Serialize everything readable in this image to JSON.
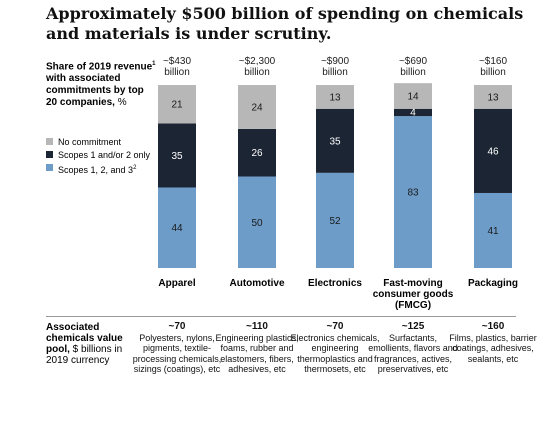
{
  "title": "Approximately $500 billion of spending on chemicals and materials is under scrutiny.",
  "left_label": {
    "main": "Share of 2019 revenue",
    "sup": "1",
    "rest": " with associated commitments by top 20 companies,",
    "unit": " %"
  },
  "legend": [
    {
      "label": "No commitment",
      "color": "#b7b7b7"
    },
    {
      "label": "Scopes 1 and/or 2 only",
      "color": "#1c2533"
    },
    {
      "label": "Scopes 1, 2, and 3",
      "sup": "2",
      "color": "#6d9cc9"
    }
  ],
  "columns": [
    {
      "revenue": "~$430",
      "unit": "billion",
      "category": "Apparel",
      "pool": "~70",
      "pool_desc": "Polyesters, nylons, pigments, textile-processing chemicals, sizings (coatings), etc"
    },
    {
      "revenue": "~$2,300",
      "unit": "billion",
      "category": "Automotive",
      "pool": "~110",
      "pool_desc": "Engineering plastics, foams, rubber and elastomers, fibers, adhesives, etc"
    },
    {
      "revenue": "~$900",
      "unit": "billion",
      "category": "Electronics",
      "pool": "~70",
      "pool_desc": "Electronics chemicals, engineering thermoplastics and thermosets, etc"
    },
    {
      "revenue": "~$690",
      "unit": "billion",
      "category": "Fast-moving consumer goods (FMCG)",
      "pool": "~125",
      "pool_desc": "Surfactants, emollients, flavors and fragrances, actives, preservatives, etc"
    },
    {
      "revenue": "~$160",
      "unit": "billion",
      "category": "Packaging",
      "pool": "~160",
      "pool_desc": "Films, plastics, barrier coatings, adhesives, sealants, etc"
    }
  ],
  "bottom_label": {
    "bold": "Associated chemicals value pool,",
    "normal": " $ billions in 2019 currency"
  },
  "chart_data": {
    "type": "bar",
    "stacked": true,
    "categories": [
      "Apparel",
      "Automotive",
      "Electronics",
      "Fast-moving consumer goods (FMCG)",
      "Packaging"
    ],
    "series": [
      {
        "name": "Scopes 1, 2, and 3",
        "values": [
          44,
          50,
          52,
          83,
          41
        ],
        "color": "#6d9cc9"
      },
      {
        "name": "Scopes 1 and/or 2 only",
        "values": [
          35,
          26,
          35,
          4,
          46
        ],
        "color": "#1c2533"
      },
      {
        "name": "No commitment",
        "values": [
          21,
          24,
          13,
          14,
          13
        ],
        "color": "#b7b7b7"
      }
    ],
    "ylim": [
      0,
      100
    ]
  }
}
